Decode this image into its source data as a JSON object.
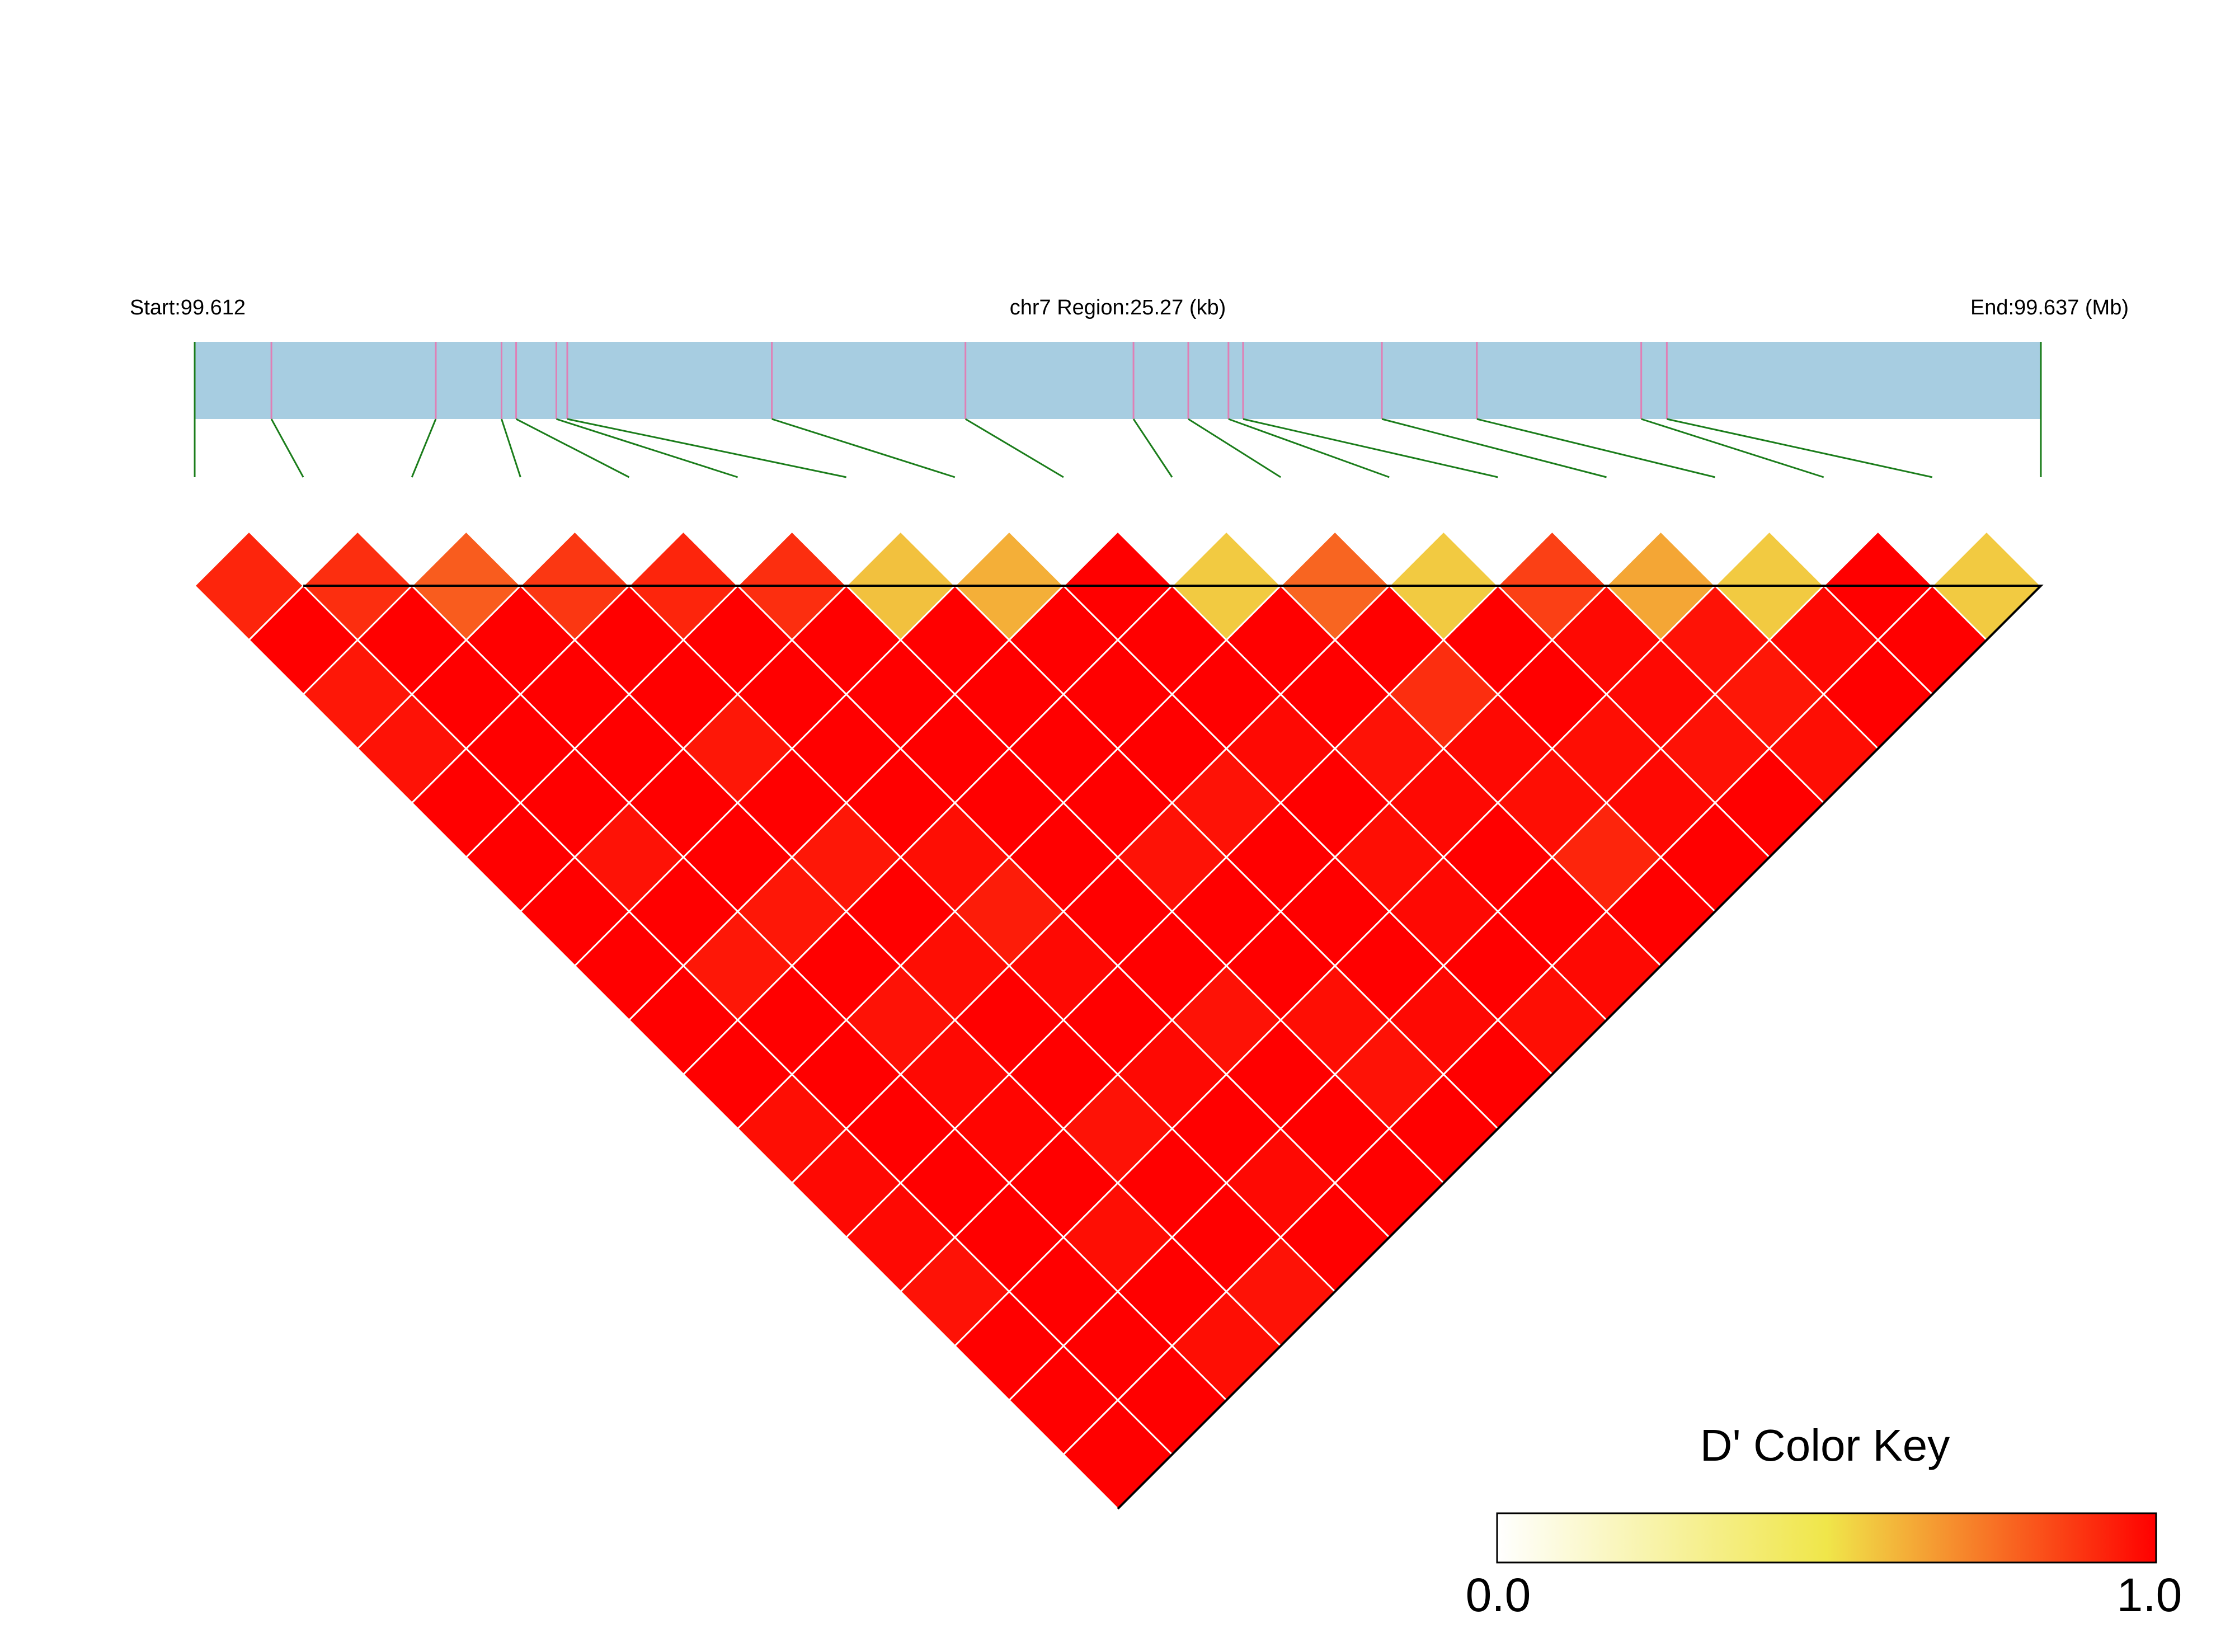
{
  "header": {
    "start_label": "Start:99.612",
    "region_label": "chr7 Region:25.27 (kb)",
    "end_label": "End:99.637 (Mb)"
  },
  "color_key": {
    "title": "D' Color Key",
    "min_label": "0.0",
    "max_label": "1.0",
    "stops": [
      "#ffffff",
      "#f0e64a",
      "#ff0000"
    ]
  },
  "colors": {
    "region_bar": "#a7cde1",
    "snp_tick": "#e07fb5",
    "connector": "#1b7d1b",
    "grid_line": "#ffffff",
    "outline": "#000000"
  },
  "chart_data": {
    "type": "heatmap",
    "measure": "D'",
    "chromosome": "chr7",
    "region_start_mb": 99.612,
    "region_end_mb": 99.637,
    "region_length_kb": 25.27,
    "snp_count": 18,
    "snp_positions_kb": [
      0.0,
      1.05,
      3.3,
      4.2,
      4.4,
      4.95,
      5.1,
      7.9,
      10.55,
      12.85,
      13.6,
      14.15,
      14.35,
      16.25,
      17.55,
      19.8,
      20.15,
      25.27
    ],
    "row_values": [
      [
        0.92,
        0.9,
        0.8,
        0.88,
        0.92,
        0.9,
        0.58,
        0.62,
        1.0,
        0.56,
        0.78,
        0.56,
        0.86,
        0.64,
        0.56,
        1.0,
        0.56
      ],
      [
        1.0,
        1.0,
        1.0,
        1.0,
        1.0,
        1.0,
        1.0,
        1.0,
        1.0,
        1.0,
        1.0,
        1.0,
        0.98,
        0.96,
        0.98,
        1.0
      ],
      [
        0.95,
        1.0,
        1.0,
        1.0,
        1.0,
        1.0,
        1.0,
        1.0,
        1.0,
        1.0,
        0.9,
        1.0,
        0.98,
        0.95,
        1.0
      ],
      [
        0.96,
        1.0,
        1.0,
        0.95,
        1.0,
        1.0,
        1.0,
        1.0,
        0.98,
        0.96,
        0.98,
        0.97,
        0.96,
        0.97
      ],
      [
        1.0,
        1.0,
        1.0,
        1.0,
        1.0,
        1.0,
        1.0,
        0.96,
        1.0,
        0.98,
        0.97,
        0.98,
        1.0
      ],
      [
        1.0,
        0.96,
        1.0,
        0.95,
        0.97,
        1.0,
        0.96,
        1.0,
        0.97,
        1.0,
        0.92,
        1.0
      ],
      [
        1.0,
        1.0,
        0.95,
        1.0,
        0.94,
        1.0,
        1.0,
        1.0,
        0.98,
        1.0,
        1.0
      ],
      [
        1.0,
        0.95,
        1.0,
        0.97,
        0.98,
        1.0,
        1.0,
        1.0,
        1.0,
        0.98
      ],
      [
        1.0,
        1.0,
        0.96,
        1.0,
        1.0,
        0.96,
        0.97,
        0.98,
        0.97
      ],
      [
        1.0,
        1.0,
        0.98,
        1.0,
        0.98,
        1.0,
        0.96,
        1.0
      ],
      [
        0.97,
        1.0,
        0.99,
        0.96,
        1.0,
        1.0,
        1.0
      ],
      [
        0.98,
        1.0,
        1.0,
        1.0,
        0.98,
        1.0
      ],
      [
        0.98,
        1.0,
        0.97,
        1.0,
        1.0
      ],
      [
        0.96,
        1.0,
        1.0,
        0.96
      ],
      [
        1.0,
        1.0,
        0.97
      ],
      [
        1.0,
        1.0
      ],
      [
        1.0
      ]
    ]
  }
}
